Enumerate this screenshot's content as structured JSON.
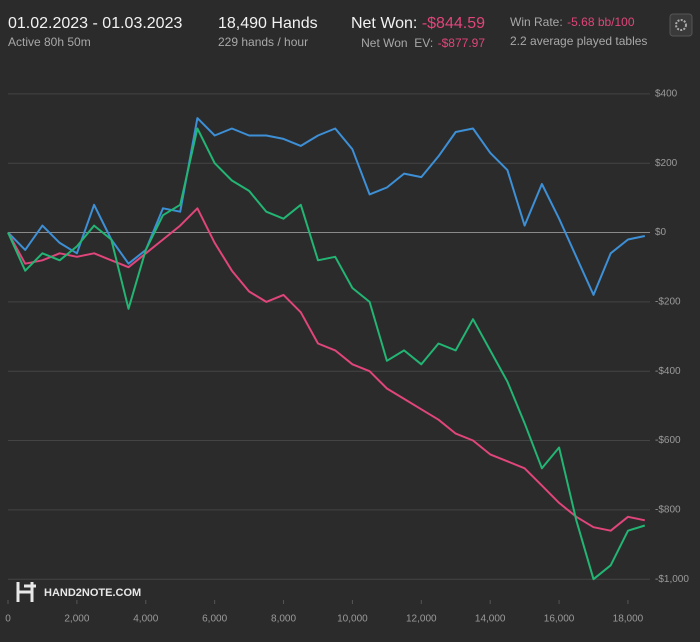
{
  "header": {
    "period": "01.02.2023 - 01.03.2023",
    "active": "Active 80h 50m",
    "hands": "18,490 Hands",
    "rate": "229 hands / hour",
    "net_won_label": "Net Won:",
    "net_won": "-$844.59",
    "net_won_ev_label": "Net Won  EV:",
    "net_won_ev": "-$877.97",
    "win_rate_label": "Win Rate:",
    "win_rate": "-5.68 bb/100",
    "tables": "2.2 average played tables"
  },
  "logo": "HAND2NOTE.COM",
  "chart_data": {
    "type": "line",
    "x": [
      0,
      500,
      1000,
      1500,
      2000,
      2500,
      3000,
      3500,
      4000,
      4500,
      5000,
      5500,
      6000,
      6500,
      7000,
      7500,
      8000,
      8500,
      9000,
      9500,
      10000,
      10500,
      11000,
      11500,
      12000,
      12500,
      13000,
      13500,
      14000,
      14500,
      15000,
      15500,
      16000,
      16500,
      17000,
      17500,
      18000,
      18490
    ],
    "series": [
      {
        "color": "#3d8fd6",
        "values": [
          0,
          -50,
          20,
          -30,
          -60,
          80,
          -20,
          -90,
          -50,
          70,
          60,
          330,
          280,
          300,
          280,
          280,
          270,
          250,
          280,
          300,
          240,
          110,
          130,
          170,
          160,
          220,
          290,
          300,
          230,
          180,
          20,
          140,
          40,
          -70,
          -180,
          -60,
          -20,
          -10
        ]
      },
      {
        "color": "#e0457b",
        "values": [
          0,
          -90,
          -80,
          -60,
          -70,
          -60,
          -80,
          -100,
          -60,
          -20,
          20,
          70,
          -30,
          -110,
          -170,
          -200,
          -180,
          -230,
          -320,
          -340,
          -380,
          -400,
          -450,
          -480,
          -510,
          -540,
          -580,
          -600,
          -640,
          -660,
          -680,
          -730,
          -780,
          -820,
          -850,
          -860,
          -820,
          -830
        ]
      },
      {
        "color": "#22b573",
        "values": [
          0,
          -110,
          -60,
          -80,
          -40,
          20,
          -20,
          -220,
          -50,
          50,
          80,
          300,
          200,
          150,
          120,
          60,
          40,
          80,
          -80,
          -70,
          -160,
          -200,
          -370,
          -340,
          -380,
          -320,
          -340,
          -250,
          -340,
          -430,
          -550,
          -680,
          -620,
          -830,
          -1000,
          -960,
          -860,
          -845
        ]
      }
    ],
    "xlim": [
      0,
      18640
    ],
    "ylim": [
      -1060,
      440
    ],
    "xticks": [
      0,
      {
        "value": 2000,
        "label": "2,000"
      },
      {
        "value": 4000,
        "label": "4,000"
      },
      {
        "value": 6000,
        "label": "6,000"
      },
      {
        "value": 8000,
        "label": "8,000"
      },
      {
        "value": 10000,
        "label": "10,000"
      },
      {
        "value": 12000,
        "label": "12,000"
      },
      {
        "value": 14000,
        "label": "14,000"
      },
      {
        "value": 16000,
        "label": "16,000"
      },
      {
        "value": 18000,
        "label": "18,000"
      }
    ],
    "yticks": [
      {
        "value": 400,
        "label": "$400"
      },
      {
        "value": 200,
        "label": "$200"
      },
      {
        "value": 0,
        "label": "$0"
      },
      {
        "value": -200,
        "label": "-$200"
      },
      {
        "value": -400,
        "label": "-$400"
      },
      {
        "value": -600,
        "label": "-$600"
      },
      {
        "value": -800,
        "label": "-$800"
      },
      {
        "value": -1000,
        "label": "-$1,000"
      }
    ],
    "grid": true
  }
}
